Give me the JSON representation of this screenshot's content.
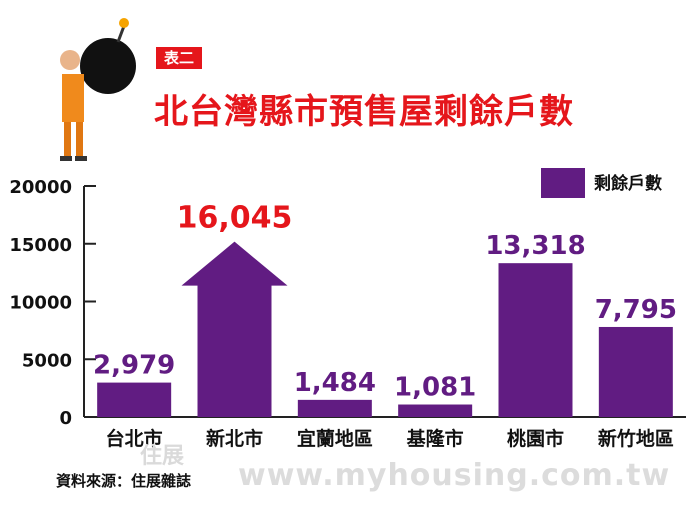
{
  "header": {
    "tag": "表二",
    "title": "北台灣縣市預售屋剩餘戶數"
  },
  "chart_data": {
    "type": "bar",
    "title": "北台灣縣市預售屋剩餘戶數",
    "categories": [
      "台北市",
      "新北市",
      "宜蘭地區",
      "基隆市",
      "桃園市",
      "新竹地區"
    ],
    "series": [
      {
        "name": "剩餘戶數",
        "values": [
          2979,
          16045,
          1484,
          1081,
          13318,
          7795
        ]
      }
    ],
    "data_labels": [
      "2,979",
      "16,045",
      "1,484",
      "1,081",
      "13,318",
      "7,795"
    ],
    "highlight_index": 1,
    "highlight_shape": "arrow",
    "ylim": [
      0,
      20000
    ],
    "yticks": [
      "0",
      "5000",
      "10000",
      "15000",
      "20000"
    ],
    "xlabel": "",
    "ylabel": "",
    "legend_position": "top-right",
    "grid": false
  },
  "colors": {
    "bar": "#611c82",
    "highlight_label": "#e5161b",
    "label": "#611c82",
    "title": "#e5161b"
  },
  "footer": {
    "source": "資料來源：住展雜誌",
    "watermark": "www.myhousing.com.tw",
    "watermark_logo": "住展"
  }
}
